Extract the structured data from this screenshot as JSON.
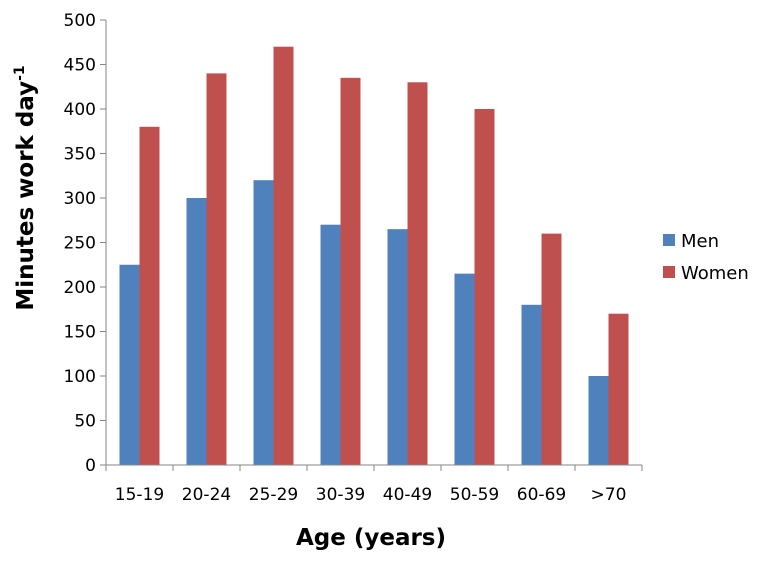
{
  "chart_data": {
    "type": "bar",
    "title": "",
    "xlabel": "Age (years)",
    "ylabel": "Minutes work day",
    "ylabel_superscript": "-1",
    "categories": [
      "15-19",
      "20-24",
      "25-29",
      "30-39",
      "40-49",
      "50-59",
      "60-69",
      ">70"
    ],
    "series": [
      {
        "name": "Men",
        "color": "#4F81BD",
        "values": [
          225,
          300,
          320,
          270,
          265,
          215,
          180,
          100
        ]
      },
      {
        "name": "Women",
        "color": "#C0504D",
        "values": [
          380,
          440,
          470,
          435,
          430,
          400,
          260,
          170
        ]
      }
    ],
    "ylim": [
      0,
      500
    ],
    "yticks": [
      0,
      50,
      100,
      150,
      200,
      250,
      300,
      350,
      400,
      450,
      500
    ],
    "grid": false,
    "legend_position": "right"
  }
}
